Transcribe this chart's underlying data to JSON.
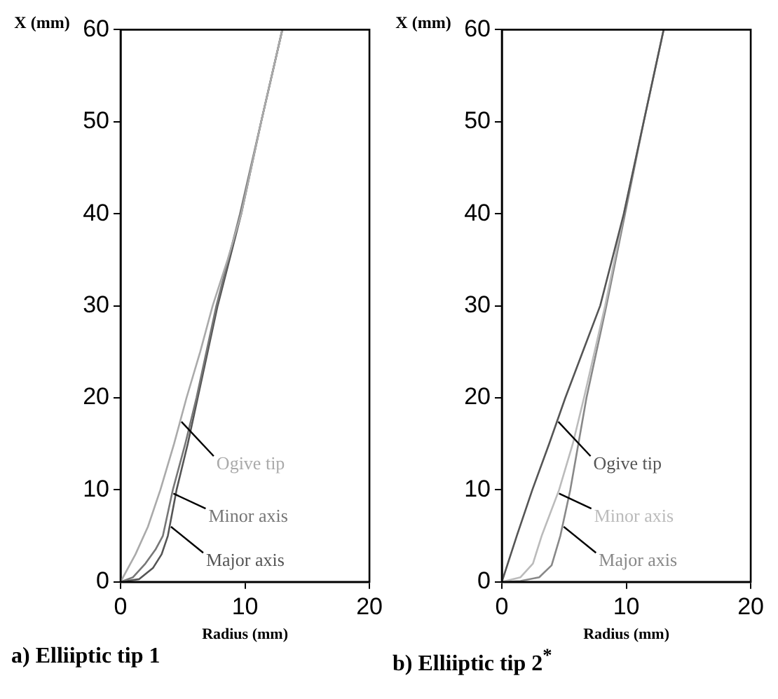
{
  "chart_data": [
    {
      "type": "line",
      "title": "a) Elliiptic tip 1",
      "xlabel": "Radius (mm)",
      "ylabel": "X (mm)",
      "xlim": [
        0,
        20
      ],
      "xticks": [
        0,
        10,
        20
      ],
      "ylim": [
        0,
        60
      ],
      "yticks": [
        0,
        10,
        20,
        30,
        40,
        50,
        60
      ],
      "grid": false,
      "legend": false,
      "marker": "none",
      "line_style": "solid",
      "series": [
        {
          "name": "Ogive tip",
          "color": "#aaaaaa",
          "x": [
            0,
            1.2,
            2.2,
            3.2,
            4.3,
            5.3,
            6.4,
            7.4,
            8.6,
            9.7,
            11.3,
            13.0
          ],
          "values": [
            0,
            3,
            6,
            10,
            15,
            20,
            25,
            30,
            35,
            40,
            50,
            60
          ]
        },
        {
          "name": "Minor axis",
          "color": "#777777",
          "x": [
            0,
            1.0,
            2.0,
            2.8,
            3.4,
            4.2,
            5.2,
            6.1,
            7.7,
            9.6,
            11.3,
            13.0
          ],
          "values": [
            0,
            0.5,
            2,
            3.5,
            5,
            10,
            15,
            20,
            30,
            40,
            50,
            60
          ]
        },
        {
          "name": "Major axis",
          "color": "#555555",
          "x": [
            0,
            1.5,
            2.6,
            3.3,
            3.8,
            4.5,
            5.4,
            6.2,
            7.8,
            9.7,
            11.3,
            13.0
          ],
          "values": [
            0,
            0.3,
            1.5,
            3,
            5,
            10,
            15,
            20,
            30,
            40,
            50,
            60
          ]
        }
      ]
    },
    {
      "type": "line",
      "title": "b) Elliiptic tip 2$^{*}$",
      "xlabel": "Radius (mm)",
      "ylabel": "X (mm)",
      "xlim": [
        0,
        20
      ],
      "xticks": [
        0,
        10,
        20
      ],
      "ylim": [
        0,
        60
      ],
      "yticks": [
        0,
        10,
        20,
        30,
        40,
        50,
        60
      ],
      "grid": false,
      "legend": false,
      "marker": "none",
      "line_style": "solid",
      "series": [
        {
          "name": "Ogive tip",
          "color": "#555555",
          "x": [
            0,
            1.2,
            2.45,
            3.8,
            5.1,
            6.5,
            7.9,
            9.8,
            11.4,
            13.0
          ],
          "values": [
            0,
            5,
            10,
            15,
            20,
            25,
            30,
            40,
            50,
            60
          ]
        },
        {
          "name": "Minor axis",
          "color": "#bbbbbb",
          "x": [
            0,
            1.5,
            2.5,
            3.2,
            4.6,
            5.7,
            6.6,
            8.3,
            9.8,
            11.4,
            13.0
          ],
          "values": [
            0,
            0.5,
            2,
            5,
            10,
            15,
            20,
            30,
            40,
            50,
            60
          ]
        },
        {
          "name": "Major axis",
          "color": "#888888",
          "x": [
            0,
            1.5,
            3.0,
            4.0,
            4.7,
            5.5,
            6.8,
            8.4,
            9.9,
            11.4,
            13.0
          ],
          "values": [
            0,
            0.1,
            0.5,
            1.8,
            5,
            10,
            20,
            30,
            40,
            50,
            60
          ]
        }
      ]
    }
  ]
}
